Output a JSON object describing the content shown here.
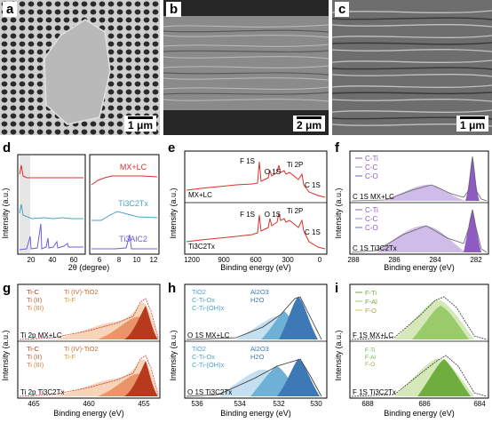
{
  "panels": {
    "a": {
      "label": "a",
      "scale": "1 μm"
    },
    "b": {
      "label": "b",
      "scale": "2 μm"
    },
    "c": {
      "label": "c",
      "scale": "1 μm"
    },
    "d": {
      "label": "d",
      "ylabel": "Intensity (a.u.)",
      "xlabel": "2θ (degree)",
      "left_ticks": [
        "20",
        "40",
        "60"
      ],
      "right_ticks": [
        "6",
        "8",
        "10",
        "12"
      ],
      "series": [
        "MX+LC",
        "Ti3C2Tx",
        "Ti3AlC2"
      ]
    },
    "e": {
      "label": "e",
      "ylabel": "Intensity (a.u.)",
      "xlabel": "Binding energy (eV)",
      "ticks": [
        "1200",
        "900",
        "600",
        "300",
        "0"
      ],
      "peaks": [
        "F 1S",
        "O 1S",
        "Ti 2P",
        "C 1S"
      ],
      "samples": [
        "MX+LC",
        "Ti3C2Tx"
      ]
    },
    "f": {
      "label": "f",
      "ylabel": "Intensity (a.u.)",
      "xlabel": "Binding energy (eV)",
      "ticks": [
        "288",
        "286",
        "284",
        "282"
      ],
      "legend": [
        "C-Ti",
        "C-C",
        "C-O"
      ],
      "titles": [
        "C 1S MX+LC",
        "C 1S Ti3C2Tx"
      ]
    },
    "g": {
      "label": "g",
      "ylabel": "Intensity (a.u.)",
      "xlabel": "Binding energy (eV)",
      "ticks": [
        "465",
        "460",
        "455"
      ],
      "legend": [
        "Ti-C",
        "Ti (II)",
        "Ti (III)",
        "Ti (IV)-TiO2",
        "Ti-F"
      ],
      "titles": [
        "Ti 2p MX+LC",
        "Ti 2p Ti3C2Tx"
      ]
    },
    "h": {
      "label": "h",
      "ylabel": "Intensity (a.u.)",
      "xlabel": "Binding energy (eV)",
      "ticks": [
        "536",
        "534",
        "532",
        "530"
      ],
      "legend": [
        "TiO2",
        "C-Ti-Ox",
        "C-Ti-(OH)x",
        "Al2O3",
        "H2O"
      ],
      "titles": [
        "O 1S MX+LC",
        "O 1S Ti3C2Tx"
      ]
    },
    "i": {
      "label": "i",
      "ylabel": "Intensity (a.u.)",
      "xlabel": "Binding energy (eV)",
      "ticks": [
        "688",
        "686",
        "684"
      ],
      "legend": [
        "F-Ti",
        "F-Al",
        "F-O"
      ],
      "titles": [
        "F 1S MX+LC",
        "F 1S Ti3C2Tx"
      ]
    }
  },
  "colors": {
    "red": "#d9302a",
    "teal": "#4aa5c4",
    "purple": "#6a62d6",
    "violet": "#8e5bc2",
    "green": "#9acb6a",
    "orange": "#d2552a",
    "blue": "#3c79b5"
  }
}
